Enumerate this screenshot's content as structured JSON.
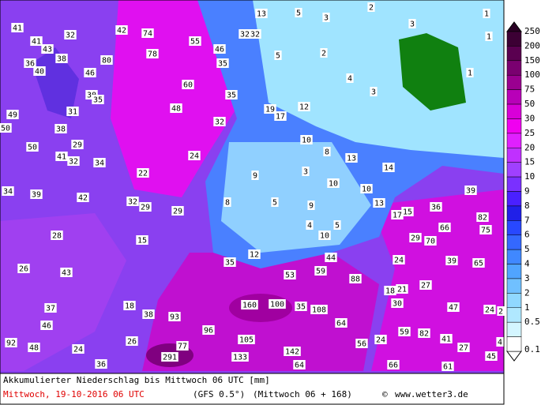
{
  "map": {
    "labels": [
      41,
      42,
      74,
      32,
      41,
      43,
      38,
      80,
      36,
      40,
      46,
      55,
      46,
      35,
      78,
      13,
      5,
      3,
      2,
      1,
      3,
      32,
      32,
      1,
      2,
      5,
      4,
      3,
      1,
      60,
      30,
      35,
      48,
      35,
      31,
      49,
      38,
      19,
      12,
      17,
      32,
      50,
      50,
      29,
      10,
      8,
      13,
      41,
      32,
      34,
      24,
      22,
      9,
      3,
      14,
      10,
      10,
      34,
      39,
      42,
      32,
      29,
      29,
      8,
      5,
      9,
      13,
      15,
      17,
      39,
      36,
      82,
      4,
      5,
      10,
      66,
      75,
      28,
      15,
      29,
      70,
      12,
      44,
      24,
      39,
      65,
      35,
      26,
      43,
      53,
      59,
      88,
      27,
      21,
      18,
      30,
      47,
      24,
      2,
      37,
      18,
      160,
      100,
      35,
      108,
      38,
      93,
      64,
      46,
      96,
      59,
      82,
      41,
      4,
      92,
      26,
      105,
      24,
      56,
      27,
      48,
      77,
      142,
      24,
      133,
      291,
      45,
      36,
      64,
      66,
      61
    ],
    "legend": [
      {
        "value": 250,
        "color": "#3c0034"
      },
      {
        "value": 200,
        "color": "#5a0050"
      },
      {
        "value": 150,
        "color": "#7a0070"
      },
      {
        "value": 100,
        "color": "#9a0090"
      },
      {
        "value": 75,
        "color": "#b800b8"
      },
      {
        "value": 50,
        "color": "#d800d8"
      },
      {
        "value": 30,
        "color": "#f000f0"
      },
      {
        "value": 25,
        "color": "#e020ff"
      },
      {
        "value": 20,
        "color": "#c030ff"
      },
      {
        "value": 15,
        "color": "#a040ff"
      },
      {
        "value": 10,
        "color": "#7a30ff"
      },
      {
        "value": 9,
        "color": "#4a20ff"
      },
      {
        "value": 8,
        "color": "#2020e8"
      },
      {
        "value": 7,
        "color": "#2848ff"
      },
      {
        "value": 6,
        "color": "#3468ff"
      },
      {
        "value": 5,
        "color": "#4088ff"
      },
      {
        "value": 4,
        "color": "#50a4ff"
      },
      {
        "value": 3,
        "color": "#70c0ff"
      },
      {
        "value": 2,
        "color": "#90d8ff"
      },
      {
        "value": 1,
        "color": "#b0e8ff"
      },
      {
        "value": 0.5,
        "color": "#d4f6ff"
      },
      {
        "value": 0.1,
        "color": "#ffffff"
      }
    ]
  },
  "footer": {
    "title": "Akkumulierter Niederschlag bis Mittwoch 06 UTC [mm]",
    "date": "Mittwoch, 19-10-2016  06 UTC",
    "model": "(GFS 0.5°)",
    "run": "(Mittwoch 06 + 168)",
    "copyright": "©",
    "site": "www.wetter3.de"
  }
}
